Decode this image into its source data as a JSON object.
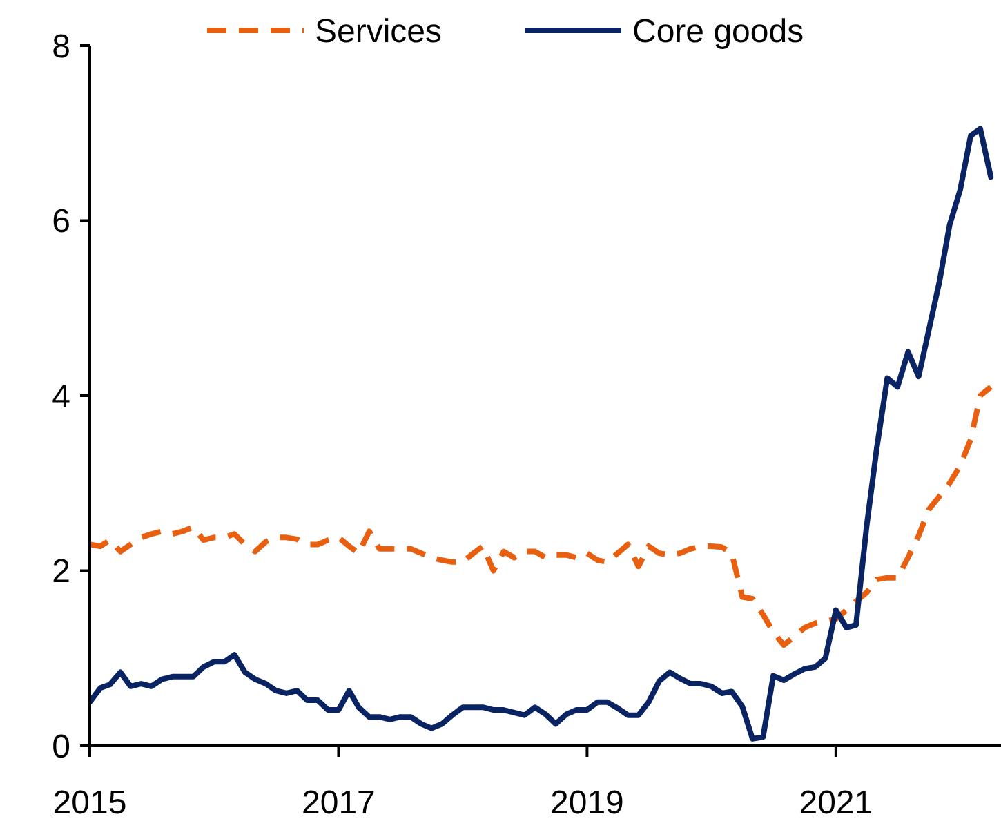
{
  "chart_data": {
    "type": "line",
    "x": [
      "2015-01",
      "2015-02",
      "2015-03",
      "2015-04",
      "2015-05",
      "2015-06",
      "2015-07",
      "2015-08",
      "2015-09",
      "2015-10",
      "2015-11",
      "2015-12",
      "2016-01",
      "2016-02",
      "2016-03",
      "2016-04",
      "2016-05",
      "2016-06",
      "2016-07",
      "2016-08",
      "2016-09",
      "2016-10",
      "2016-11",
      "2016-12",
      "2017-01",
      "2017-02",
      "2017-03",
      "2017-04",
      "2017-05",
      "2017-06",
      "2017-07",
      "2017-08",
      "2017-09",
      "2017-10",
      "2017-11",
      "2017-12",
      "2018-01",
      "2018-02",
      "2018-03",
      "2018-04",
      "2018-05",
      "2018-06",
      "2018-07",
      "2018-08",
      "2018-09",
      "2018-10",
      "2018-11",
      "2018-12",
      "2019-01",
      "2019-02",
      "2019-03",
      "2019-04",
      "2019-05",
      "2019-06",
      "2019-07",
      "2019-08",
      "2019-09",
      "2019-10",
      "2019-11",
      "2019-12",
      "2020-01",
      "2020-02",
      "2020-03",
      "2020-04",
      "2020-05",
      "2020-06",
      "2020-07",
      "2020-08",
      "2020-09",
      "2020-10",
      "2020-11",
      "2020-12",
      "2021-01",
      "2021-02",
      "2021-03",
      "2021-04",
      "2021-05",
      "2021-06",
      "2021-07",
      "2021-08",
      "2021-09",
      "2021-10",
      "2021-11",
      "2021-12",
      "2022-01",
      "2022-02",
      "2022-03",
      "2022-04"
    ],
    "series": [
      {
        "name": "Services",
        "color": "#e8600f",
        "line_style": "dashed",
        "values": [
          2.3,
          2.28,
          2.35,
          2.22,
          2.3,
          2.38,
          2.42,
          2.45,
          2.42,
          2.45,
          2.5,
          2.35,
          2.38,
          2.38,
          2.42,
          2.3,
          2.22,
          2.33,
          2.38,
          2.38,
          2.36,
          2.3,
          2.3,
          2.35,
          2.38,
          2.28,
          2.2,
          2.45,
          2.25,
          2.25,
          2.25,
          2.25,
          2.2,
          2.15,
          2.12,
          2.1,
          2.1,
          2.2,
          2.28,
          2.0,
          2.22,
          2.15,
          2.22,
          2.22,
          2.15,
          2.18,
          2.18,
          2.15,
          2.2,
          2.12,
          2.1,
          2.2,
          2.3,
          2.05,
          2.28,
          2.2,
          2.18,
          2.2,
          2.25,
          2.28,
          2.28,
          2.27,
          2.2,
          1.7,
          1.68,
          1.5,
          1.3,
          1.15,
          1.25,
          1.35,
          1.4,
          1.42,
          1.45,
          1.55,
          1.65,
          1.75,
          1.9,
          1.92,
          1.92,
          2.15,
          2.4,
          2.7,
          2.85,
          3.0,
          3.2,
          3.5,
          4.0,
          4.1
        ]
      },
      {
        "name": "Core goods",
        "color": "#0a2463",
        "line_style": "solid",
        "values": [
          0.5,
          0.66,
          0.7,
          0.84,
          0.68,
          0.71,
          0.68,
          0.76,
          0.79,
          0.79,
          0.79,
          0.9,
          0.96,
          0.96,
          1.04,
          0.84,
          0.76,
          0.71,
          0.63,
          0.6,
          0.63,
          0.52,
          0.52,
          0.41,
          0.41,
          0.63,
          0.44,
          0.33,
          0.33,
          0.3,
          0.33,
          0.33,
          0.25,
          0.2,
          0.25,
          0.35,
          0.44,
          0.44,
          0.44,
          0.41,
          0.41,
          0.38,
          0.35,
          0.44,
          0.36,
          0.25,
          0.36,
          0.41,
          0.41,
          0.5,
          0.5,
          0.43,
          0.35,
          0.35,
          0.5,
          0.74,
          0.84,
          0.77,
          0.71,
          0.71,
          0.68,
          0.6,
          0.62,
          0.45,
          0.08,
          0.1,
          0.8,
          0.75,
          0.82,
          0.88,
          0.9,
          1.0,
          1.55,
          1.35,
          1.38,
          2.5,
          3.4,
          4.2,
          4.1,
          4.5,
          4.22,
          4.75,
          5.3,
          5.95,
          6.35,
          6.97,
          7.05,
          6.5
        ]
      }
    ],
    "xlim": [
      "2015-01",
      "2022-05"
    ],
    "xticks": [
      {
        "value": "2015-01",
        "label": "2015"
      },
      {
        "value": "2017-01",
        "label": "2017"
      },
      {
        "value": "2019-01",
        "label": "2019"
      },
      {
        "value": "2021-01",
        "label": "2021"
      }
    ],
    "ylim": [
      0,
      8
    ],
    "yticks": [
      0,
      2,
      4,
      6,
      8
    ],
    "legend": "top",
    "grid": false
  }
}
